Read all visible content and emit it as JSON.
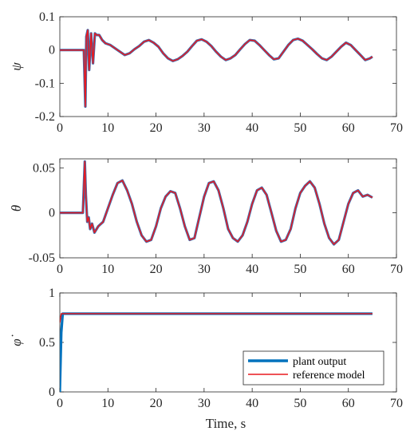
{
  "chart_data": [
    {
      "type": "line",
      "ylabel": "ψ",
      "xlabel": "",
      "xlim": [
        0,
        70
      ],
      "ylim": [
        -0.2,
        0.1
      ],
      "xticks": [
        "0",
        "10",
        "20",
        "30",
        "40",
        "50",
        "60",
        "70"
      ],
      "yticks": [
        "0.1",
        "0",
        "-0.1",
        "-0.2"
      ],
      "series": [
        {
          "x": [
            0,
            5,
            5.3,
            5.5,
            5.8,
            6.1,
            6.5,
            6.9,
            7.3,
            7.7,
            8.2,
            8.8,
            9.5,
            10.5,
            11.5,
            12.5,
            13.5,
            14.5,
            15.5,
            16.5,
            17.5,
            18.5,
            19.5,
            20.5,
            21.5,
            22.5,
            23.5,
            24.5,
            25.5,
            26.5,
            27.5,
            28.5,
            29.5,
            30.5,
            31.5,
            32.5,
            33.5,
            34.5,
            35.5,
            36.5,
            37.5,
            38.5,
            39.5,
            40.5,
            41.5,
            42.5,
            43.5,
            44.5,
            45.5,
            46.5,
            47.5,
            48.5,
            49.5,
            50.5,
            51.5,
            52.5,
            53.5,
            54.5,
            55.5,
            56.5,
            57.5,
            58.5,
            59.5,
            60.5,
            61.5,
            62.5,
            63.5,
            64.5,
            65
          ],
          "y": [
            0,
            0,
            -0.17,
            0.04,
            0.06,
            -0.06,
            0.05,
            -0.04,
            0.05,
            0.045,
            0.045,
            0.03,
            0.02,
            0.015,
            0.005,
            -0.005,
            -0.015,
            -0.01,
            0.002,
            0.012,
            0.025,
            0.03,
            0.022,
            0.01,
            -0.01,
            -0.025,
            -0.033,
            -0.028,
            -0.018,
            -0.005,
            0.012,
            0.028,
            0.032,
            0.025,
            0.012,
            -0.005,
            -0.02,
            -0.03,
            -0.025,
            -0.015,
            0.002,
            0.018,
            0.03,
            0.028,
            0.015,
            0.0,
            -0.015,
            -0.028,
            -0.025,
            -0.005,
            0.015,
            0.03,
            0.034,
            0.028,
            0.015,
            0.002,
            -0.012,
            -0.025,
            -0.03,
            -0.02,
            -0.005,
            0.01,
            0.022,
            0.015,
            0.0,
            -0.015,
            -0.03,
            -0.025,
            -0.02
          ]
        }
      ]
    },
    {
      "type": "line",
      "ylabel": "θ",
      "xlabel": "",
      "xlim": [
        0,
        70
      ],
      "ylim": [
        -0.05,
        0.06
      ],
      "xticks": [
        "0",
        "10",
        "20",
        "30",
        "40",
        "50",
        "60",
        "70"
      ],
      "yticks": [
        "0.05",
        "0",
        "-0.05"
      ],
      "series": [
        {
          "x": [
            0,
            4.8,
            5.2,
            5.4,
            5.7,
            6.0,
            6.3,
            6.7,
            7.2,
            8.0,
            9.0,
            10.0,
            11.0,
            12.0,
            13.0,
            14.0,
            15.0,
            16.0,
            17.0,
            18.0,
            19.0,
            20.0,
            21.0,
            22.0,
            23.0,
            24.0,
            25.0,
            26.0,
            27.0,
            28.0,
            29.0,
            30.0,
            31.0,
            32.0,
            33.0,
            34.0,
            35.0,
            36.0,
            37.0,
            38.0,
            39.0,
            40.0,
            41.0,
            42.0,
            43.0,
            44.0,
            45.0,
            46.0,
            47.0,
            48.0,
            49.0,
            50.0,
            51.0,
            52.0,
            53.0,
            54.0,
            55.0,
            56.0,
            57.0,
            58.0,
            59.0,
            60.0,
            61.0,
            62.0,
            63.0,
            64.0,
            65.0
          ],
          "y": [
            0,
            0,
            0.057,
            0.02,
            -0.01,
            -0.005,
            -0.018,
            -0.012,
            -0.022,
            -0.015,
            -0.01,
            0.005,
            0.02,
            0.033,
            0.036,
            0.025,
            0.01,
            -0.01,
            -0.025,
            -0.032,
            -0.03,
            -0.015,
            0.005,
            0.018,
            0.024,
            0.022,
            0.005,
            -0.015,
            -0.03,
            -0.028,
            -0.005,
            0.018,
            0.033,
            0.035,
            0.025,
            0.005,
            -0.018,
            -0.028,
            -0.032,
            -0.025,
            -0.01,
            0.01,
            0.025,
            0.028,
            0.02,
            0.0,
            -0.02,
            -0.032,
            -0.03,
            -0.018,
            0.005,
            0.022,
            0.03,
            0.035,
            0.028,
            0.01,
            -0.012,
            -0.028,
            -0.035,
            -0.03,
            -0.01,
            0.01,
            0.022,
            0.025,
            0.018,
            0.02,
            0.017
          ]
        }
      ]
    },
    {
      "type": "line",
      "ylabel": "φ̇",
      "xlabel": "Time, s",
      "xlim": [
        0,
        70
      ],
      "ylim": [
        0,
        1
      ],
      "xticks": [
        "0",
        "10",
        "20",
        "30",
        "40",
        "50",
        "60",
        "70"
      ],
      "yticks": [
        "1",
        "0.5",
        "0"
      ],
      "legend_position": "bottom-right",
      "series": [
        {
          "name": "plant output",
          "color": "#0072BD",
          "x": [
            0,
            0.3,
            0.6,
            65
          ],
          "y": [
            0,
            0.6,
            0.79,
            0.79
          ]
        },
        {
          "name": "reference model",
          "color": "#E8191F",
          "x": [
            0,
            0.3,
            0.6,
            65
          ],
          "y": [
            0.7,
            0.79,
            0.79,
            0.79
          ]
        }
      ]
    }
  ],
  "colors": {
    "plant": "#3E6FB0",
    "reference": "#E8191F",
    "axis": "#262626"
  }
}
